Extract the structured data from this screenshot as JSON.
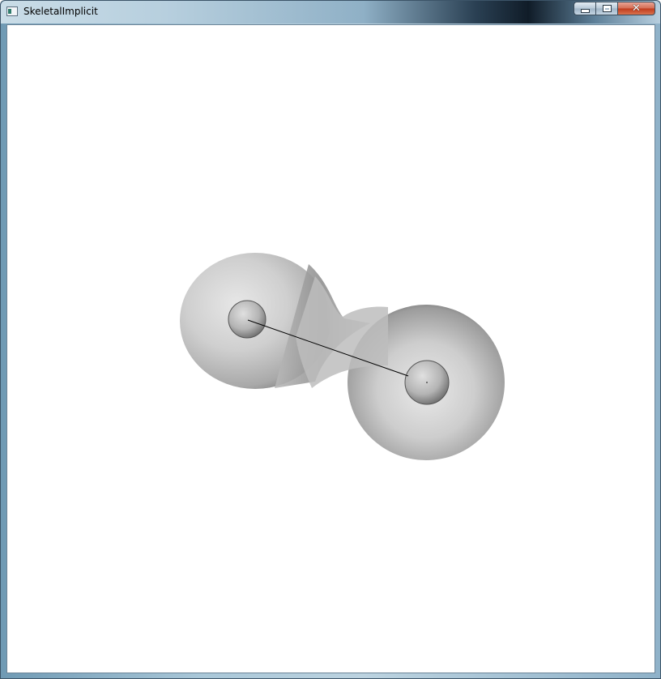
{
  "window": {
    "title": "SkeletalImplicit",
    "close_glyph": "✕"
  },
  "icons": {
    "app": "window-app-icon",
    "minimize": "minimize-icon",
    "maximize": "maximize-icon",
    "close": "close-icon"
  },
  "scene": {
    "background": "#ffffff",
    "surface_color": "#c8c8c8"
  }
}
